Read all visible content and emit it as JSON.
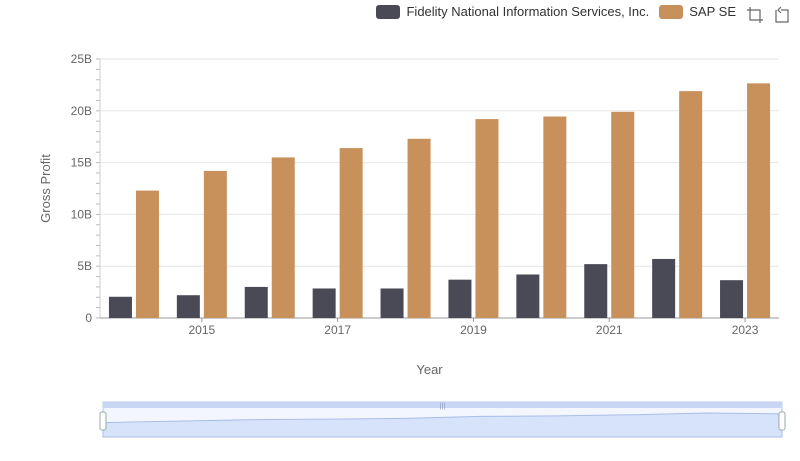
{
  "colors": {
    "series_1": "#4a4a57",
    "series_2": "#c8915c",
    "axis": "#999999",
    "grid": "#e6e6e6",
    "zoom_fill": "#d7e3fb",
    "zoom_border": "#b9c8ef"
  },
  "toolbox": {
    "zoom_icon": "zoom-icon",
    "reset_icon": "zoom-reset-icon"
  },
  "chart_data": {
    "type": "bar",
    "title": "",
    "xlabel": "Year",
    "ylabel": "Gross Profit",
    "ylim": [
      0,
      25000000000
    ],
    "yticks": [
      "0",
      "5B",
      "10B",
      "15B",
      "20B",
      "25B"
    ],
    "categories": [
      "2014",
      "2015",
      "2016",
      "2017",
      "2018",
      "2019",
      "2020",
      "2021",
      "2022",
      "2023"
    ],
    "xtick_labels": [
      "2015",
      "2017",
      "2019",
      "2021",
      "2023"
    ],
    "grid": "horizontal",
    "legend_position": "top-right",
    "series": [
      {
        "name": "Fidelity National Information Services, Inc.",
        "values": [
          2050000000,
          2200000000,
          3000000000,
          2850000000,
          2850000000,
          3700000000,
          4200000000,
          5200000000,
          5700000000,
          3650000000
        ]
      },
      {
        "name": "SAP SE",
        "values": [
          12300000000,
          14200000000,
          15500000000,
          16400000000,
          17300000000,
          19200000000,
          19450000000,
          19900000000,
          21900000000,
          22650000000
        ]
      }
    ]
  }
}
